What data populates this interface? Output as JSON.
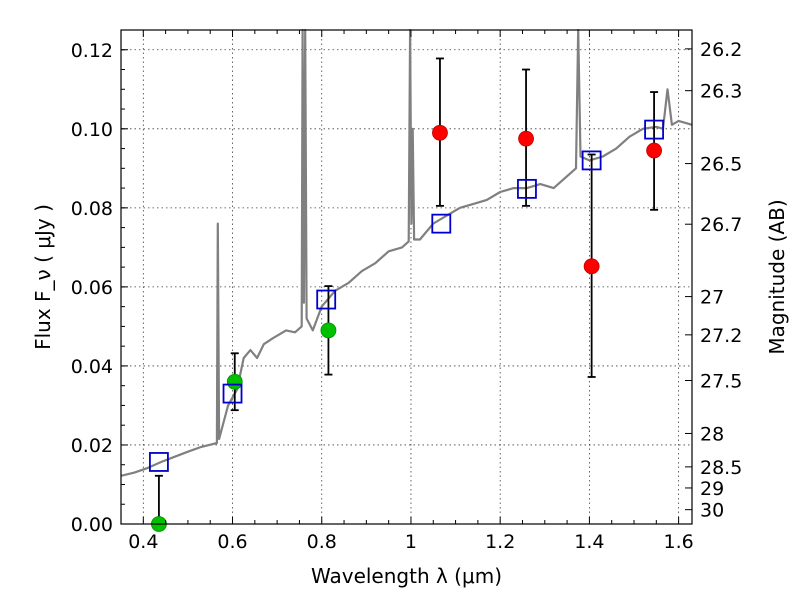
{
  "chart_data": {
    "type": "scatter",
    "xlabel": "Wavelength  λ (μm)",
    "ylabel": "Flux  F_ν  ( μJy )",
    "ylabel_right": "Magnitude (AB)",
    "xlim": [
      0.35,
      1.63
    ],
    "ylim": [
      0.0,
      0.125
    ],
    "grid": true,
    "x_ticks": [
      0.4,
      0.6,
      0.8,
      1.0,
      1.2,
      1.4,
      1.6
    ],
    "x_tick_labels": [
      "0.4",
      "0.6",
      "0.8",
      "1",
      "1.2",
      "1.4",
      "1.6"
    ],
    "y_ticks": [
      0.0,
      0.02,
      0.04,
      0.06,
      0.08,
      0.1,
      0.12
    ],
    "y_tick_labels": [
      "0.00",
      "0.02",
      "0.04",
      "0.06",
      "0.08",
      "0.10",
      "0.12"
    ],
    "right_axis_ticks": [
      {
        "label": "26.2",
        "mag": 26.2
      },
      {
        "label": "26.3",
        "mag": 26.3
      },
      {
        "label": "26.5",
        "mag": 26.5
      },
      {
        "label": "26.7",
        "mag": 26.7
      },
      {
        "label": "27",
        "mag": 27.0
      },
      {
        "label": "27.2",
        "mag": 27.2
      },
      {
        "label": "27.5",
        "mag": 27.5
      },
      {
        "label": "28",
        "mag": 28.0
      },
      {
        "label": "28.5",
        "mag": 28.5
      },
      {
        "label": "29",
        "mag": 29.0
      },
      {
        "label": "30",
        "mag": 30.0
      }
    ],
    "spectrum": {
      "color": "#808080",
      "points": [
        [
          0.35,
          0.0122
        ],
        [
          0.38,
          0.013
        ],
        [
          0.41,
          0.0142
        ],
        [
          0.44,
          0.0157
        ],
        [
          0.47,
          0.017
        ],
        [
          0.5,
          0.0183
        ],
        [
          0.53,
          0.0195
        ],
        [
          0.555,
          0.0202
        ],
        [
          0.565,
          0.0205
        ],
        [
          0.567,
          0.076
        ],
        [
          0.57,
          0.0215
        ],
        [
          0.59,
          0.03
        ],
        [
          0.61,
          0.034
        ],
        [
          0.625,
          0.042
        ],
        [
          0.64,
          0.044
        ],
        [
          0.655,
          0.042
        ],
        [
          0.67,
          0.0455
        ],
        [
          0.69,
          0.047
        ],
        [
          0.72,
          0.049
        ],
        [
          0.74,
          0.0485
        ],
        [
          0.755,
          0.05
        ],
        [
          0.757,
          0.125
        ],
        [
          0.76,
          0.056
        ],
        [
          0.763,
          0.125
        ],
        [
          0.766,
          0.052
        ],
        [
          0.78,
          0.049
        ],
        [
          0.8,
          0.055
        ],
        [
          0.83,
          0.059
        ],
        [
          0.86,
          0.061
        ],
        [
          0.89,
          0.064
        ],
        [
          0.92,
          0.066
        ],
        [
          0.95,
          0.069
        ],
        [
          0.98,
          0.07
        ],
        [
          0.995,
          0.0715
        ],
        [
          0.998,
          0.125
        ],
        [
          1.001,
          0.076
        ],
        [
          1.004,
          0.1
        ],
        [
          1.007,
          0.072
        ],
        [
          1.02,
          0.072
        ],
        [
          1.05,
          0.076
        ],
        [
          1.08,
          0.078
        ],
        [
          1.11,
          0.08
        ],
        [
          1.14,
          0.081
        ],
        [
          1.17,
          0.082
        ],
        [
          1.2,
          0.084
        ],
        [
          1.23,
          0.085
        ],
        [
          1.26,
          0.085
        ],
        [
          1.29,
          0.086
        ],
        [
          1.32,
          0.085
        ],
        [
          1.35,
          0.088
        ],
        [
          1.37,
          0.09
        ],
        [
          1.375,
          0.125
        ],
        [
          1.38,
          0.093
        ],
        [
          1.4,
          0.092
        ],
        [
          1.43,
          0.093
        ],
        [
          1.46,
          0.095
        ],
        [
          1.49,
          0.098
        ],
        [
          1.52,
          0.1
        ],
        [
          1.55,
          0.1005
        ],
        [
          1.565,
          0.1
        ],
        [
          1.575,
          0.11
        ],
        [
          1.585,
          0.101
        ],
        [
          1.6,
          0.102
        ],
        [
          1.63,
          0.101
        ]
      ]
    },
    "series": [
      {
        "marker": "filled-circle",
        "color": "#ff0000",
        "points": [
          {
            "x": 1.065,
            "y": 0.099,
            "y_low": 0.0805,
            "y_high": 0.1178
          },
          {
            "x": 1.258,
            "y": 0.0975,
            "y_low": 0.0805,
            "y_high": 0.115
          },
          {
            "x": 1.405,
            "y": 0.0652,
            "y_low": 0.0372,
            "y_high": 0.0935
          },
          {
            "x": 1.545,
            "y": 0.0945,
            "y_low": 0.0795,
            "y_high": 0.1093
          }
        ]
      },
      {
        "marker": "filled-circle",
        "color": "#00c000",
        "points": [
          {
            "x": 0.435,
            "y": 0.0,
            "y_low": 0.0,
            "y_high": 0.0122
          },
          {
            "x": 0.605,
            "y": 0.036,
            "y_low": 0.0288,
            "y_high": 0.0432
          },
          {
            "x": 0.815,
            "y": 0.049,
            "y_low": 0.0378,
            "y_high": 0.0602
          }
        ]
      },
      {
        "marker": "open-square",
        "color": "#0000cc",
        "points": [
          {
            "x": 0.435,
            "y": 0.0157
          },
          {
            "x": 0.6,
            "y": 0.033
          },
          {
            "x": 0.81,
            "y": 0.0568
          },
          {
            "x": 1.068,
            "y": 0.076
          },
          {
            "x": 1.26,
            "y": 0.0848
          },
          {
            "x": 1.405,
            "y": 0.092
          },
          {
            "x": 1.545,
            "y": 0.0998
          }
        ]
      }
    ]
  }
}
